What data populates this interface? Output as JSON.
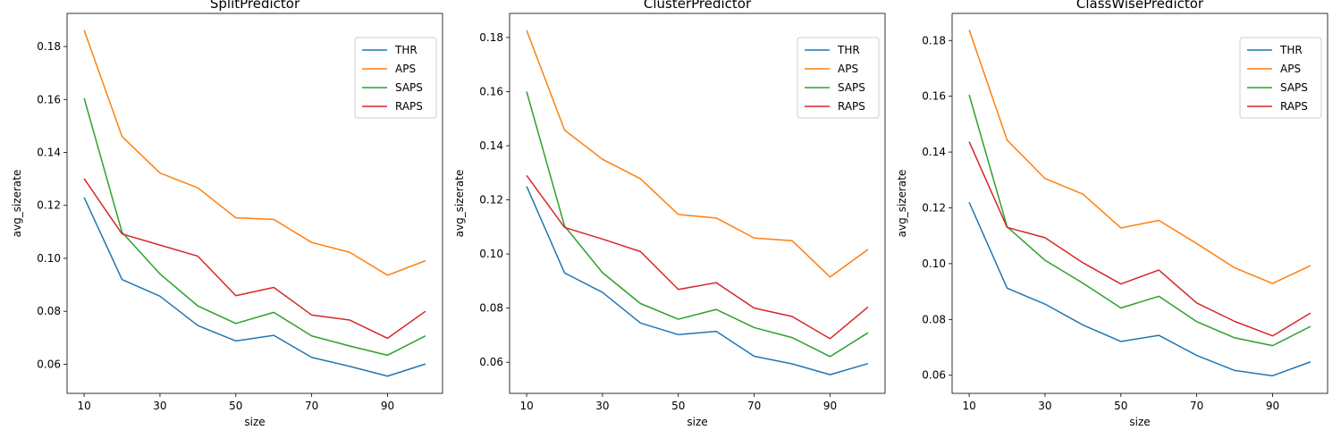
{
  "chart_data": [
    {
      "type": "line",
      "title": "SplitPredictor",
      "xlabel": "size",
      "ylabel": "avg_sizerate",
      "x": [
        10,
        20,
        30,
        40,
        50,
        60,
        70,
        80,
        90,
        100
      ],
      "xticks": [
        10,
        30,
        50,
        70,
        90
      ],
      "xlim": [
        5.5,
        104.5
      ],
      "ylim": [
        0.049,
        0.1925
      ],
      "yticks": [
        0.06,
        0.08,
        0.1,
        0.12,
        0.14,
        0.16,
        0.18
      ],
      "ytick_labels": [
        "0.06",
        "0.08",
        "0.10",
        "0.12",
        "0.14",
        "0.16",
        "0.18"
      ],
      "legend_loc": "top-right",
      "grid": false,
      "series": [
        {
          "name": "THR",
          "color": "#1f77b4",
          "values": [
            0.123,
            0.092,
            0.0857,
            0.0746,
            0.0688,
            0.0709,
            0.0626,
            0.0592,
            0.0555,
            0.0601
          ]
        },
        {
          "name": "APS",
          "color": "#ff7f0e",
          "values": [
            0.1862,
            0.146,
            0.1322,
            0.1266,
            0.1153,
            0.1147,
            0.106,
            0.1023,
            0.0936,
            0.0991
          ]
        },
        {
          "name": "SAPS",
          "color": "#2ca02c",
          "values": [
            0.1605,
            0.1098,
            0.0941,
            0.082,
            0.0754,
            0.0796,
            0.0707,
            0.0669,
            0.0634,
            0.0707
          ]
        },
        {
          "name": "RAPS",
          "color": "#d62728",
          "values": [
            0.1301,
            0.1092,
            0.105,
            0.1008,
            0.0859,
            0.089,
            0.0786,
            0.0767,
            0.0698,
            0.08
          ]
        }
      ]
    },
    {
      "type": "line",
      "title": "ClusterPredictor",
      "xlabel": "size",
      "ylabel": "avg_sizerate",
      "x": [
        10,
        20,
        30,
        40,
        50,
        60,
        70,
        80,
        90,
        100
      ],
      "xticks": [
        10,
        30,
        50,
        70,
        90
      ],
      "xlim": [
        5.5,
        104.5
      ],
      "ylim": [
        0.0485,
        0.1889
      ],
      "yticks": [
        0.06,
        0.08,
        0.1,
        0.12,
        0.14,
        0.16,
        0.18
      ],
      "ytick_labels": [
        "0.06",
        "0.08",
        "0.10",
        "0.12",
        "0.14",
        "0.16",
        "0.18"
      ],
      "legend_loc": "top-right",
      "grid": false,
      "series": [
        {
          "name": "THR",
          "color": "#1f77b4",
          "values": [
            0.125,
            0.093,
            0.0858,
            0.0745,
            0.0702,
            0.0714,
            0.0622,
            0.0594,
            0.0554,
            0.0595
          ]
        },
        {
          "name": "APS",
          "color": "#ff7f0e",
          "values": [
            0.1826,
            0.1458,
            0.135,
            0.1278,
            0.1146,
            0.1133,
            0.1059,
            0.1049,
            0.0915,
            0.1017
          ]
        },
        {
          "name": "SAPS",
          "color": "#2ca02c",
          "values": [
            0.16,
            0.1103,
            0.0931,
            0.0817,
            0.0759,
            0.0795,
            0.0728,
            0.0691,
            0.0621,
            0.0709
          ]
        },
        {
          "name": "RAPS",
          "color": "#d62728",
          "values": [
            0.129,
            0.1098,
            0.1055,
            0.1009,
            0.0869,
            0.0894,
            0.08,
            0.0769,
            0.0687,
            0.0804
          ]
        }
      ]
    },
    {
      "type": "line",
      "title": "ClassWisePredictor",
      "xlabel": "size",
      "ylabel": "avg_sizerate",
      "x": [
        10,
        20,
        30,
        40,
        50,
        60,
        70,
        80,
        90,
        100
      ],
      "xticks": [
        10,
        30,
        50,
        70,
        90
      ],
      "xlim": [
        5.5,
        104.5
      ],
      "ylim": [
        0.0535,
        0.1897
      ],
      "yticks": [
        0.06,
        0.08,
        0.1,
        0.12,
        0.14,
        0.16,
        0.18
      ],
      "ytick_labels": [
        "0.06",
        "0.08",
        "0.10",
        "0.12",
        "0.14",
        "0.16",
        "0.18"
      ],
      "legend_loc": "top-right",
      "grid": false,
      "series": [
        {
          "name": "THR",
          "color": "#1f77b4",
          "values": [
            0.122,
            0.0912,
            0.0855,
            0.078,
            0.0721,
            0.0743,
            0.0671,
            0.0617,
            0.0598,
            0.0648
          ]
        },
        {
          "name": "APS",
          "color": "#ff7f0e",
          "values": [
            0.1838,
            0.1443,
            0.1305,
            0.1249,
            0.1128,
            0.1155,
            0.1072,
            0.0985,
            0.0929,
            0.0993
          ]
        },
        {
          "name": "SAPS",
          "color": "#2ca02c",
          "values": [
            0.1605,
            0.1132,
            0.1012,
            0.093,
            0.0841,
            0.0883,
            0.0792,
            0.0734,
            0.0706,
            0.0775
          ]
        },
        {
          "name": "RAPS",
          "color": "#d62728",
          "values": [
            0.1437,
            0.113,
            0.1093,
            0.1003,
            0.0927,
            0.0977,
            0.0859,
            0.0793,
            0.0741,
            0.0823
          ]
        }
      ]
    }
  ]
}
